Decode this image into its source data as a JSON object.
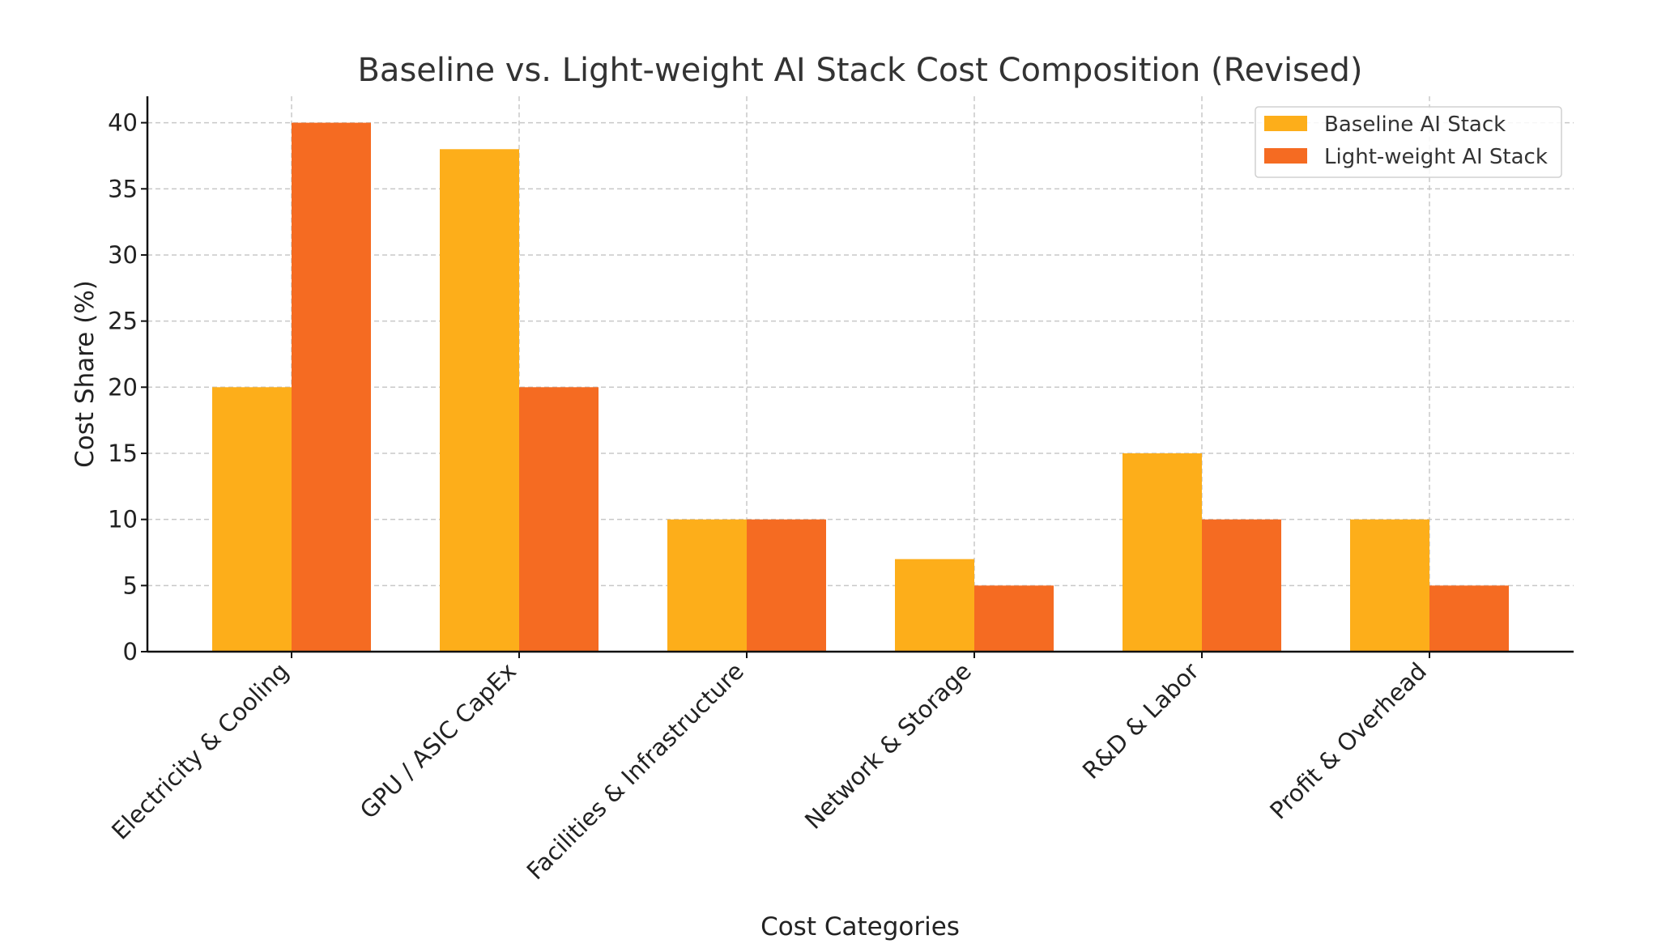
{
  "chart_data": {
    "type": "bar",
    "title": "Baseline vs. Light-weight AI Stack Cost Composition (Revised)",
    "xlabel": "Cost Categories",
    "ylabel": "Cost Share (%)",
    "categories": [
      "Electricity & Cooling",
      "GPU / ASIC CapEx",
      "Facilities & Infrastructure",
      "Network & Storage",
      "R&D & Labor",
      "Profit & Overhead"
    ],
    "series": [
      {
        "name": "Baseline AI Stack",
        "color": "#FDAE1A",
        "values": [
          20,
          38,
          10,
          7,
          15,
          10
        ]
      },
      {
        "name": "Light-weight AI Stack",
        "color": "#F56B22",
        "values": [
          40,
          20,
          10,
          5,
          10,
          5
        ]
      }
    ],
    "ylim": [
      0,
      42
    ],
    "yticks": [
      0,
      5,
      10,
      15,
      20,
      25,
      30,
      35,
      40
    ],
    "grid": true,
    "legend_position": "top-right"
  }
}
